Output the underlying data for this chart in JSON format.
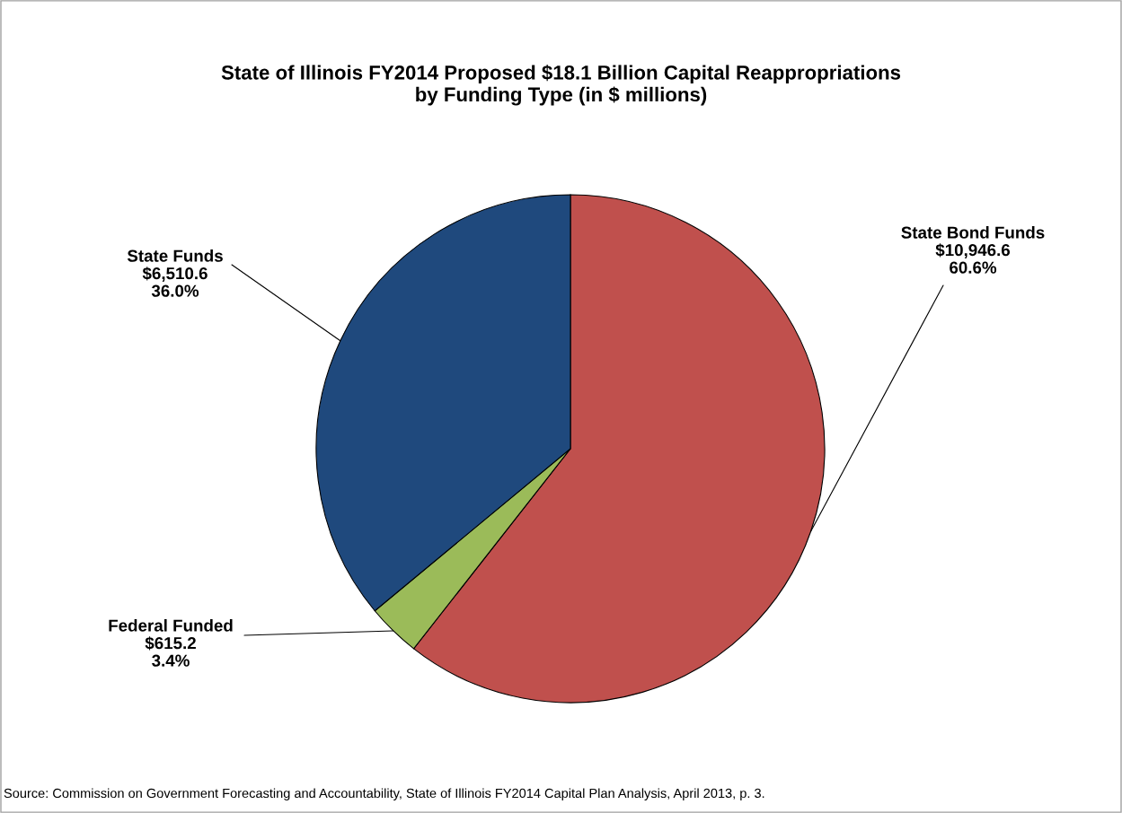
{
  "chart_data": {
    "type": "pie",
    "title": "State of Illinois FY2014 Proposed $18.1 Billion Capital Reappropriations\nby Funding Type (in $ millions)",
    "categories": [
      "State Bond Funds",
      "Federal Funded",
      "State Funds"
    ],
    "values": [
      10946.6,
      615.2,
      6510.6
    ],
    "colors": [
      "#c0504d",
      "#9bbb59",
      "#1f497d"
    ],
    "value_labels": [
      "$10,946.6\n60.6%",
      "$615.2\n3.4%",
      "$6,510.6\n36.0%"
    ],
    "annotations": [
      "Source: Commission on Government Forecasting and Accountability, State of Illinois FY2014 Capital Plan Analysis, April 2013, p. 3."
    ]
  }
}
